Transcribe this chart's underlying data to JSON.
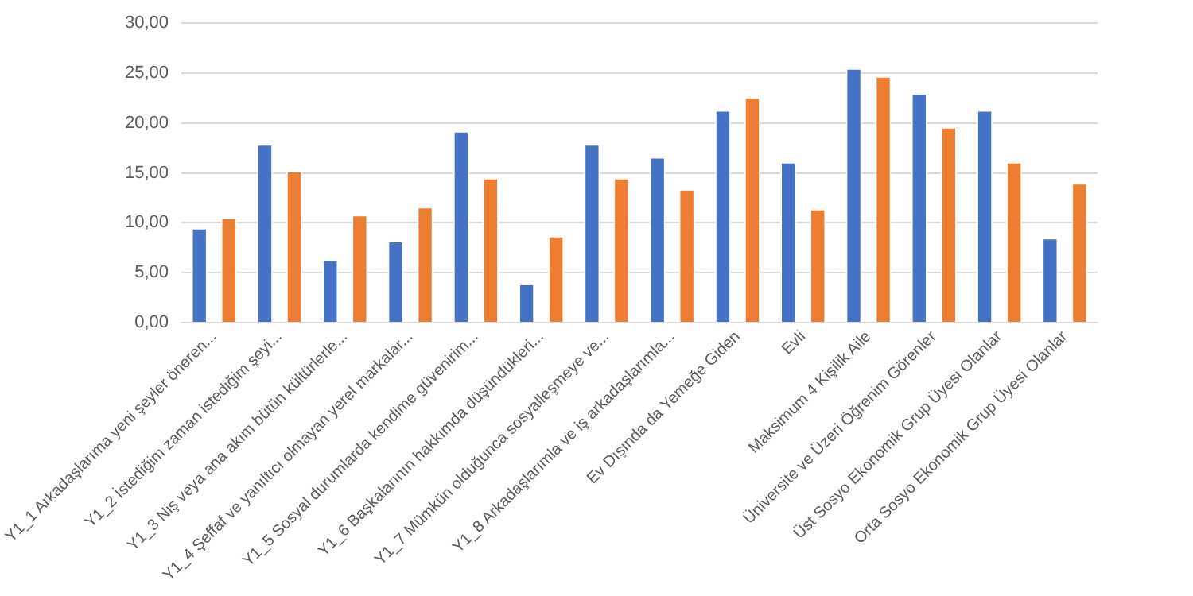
{
  "chart_data": {
    "type": "bar",
    "categories": [
      "Y1_1 Arkadaşlarıma yeni şeyler öneren...",
      "Y1_2 İstediğim zaman istediğim şeyi...",
      "Y1_3 Niş veya ana akım bütün kültürlerle...",
      "Y1_4 Şeffaf ve yanıltıcı olmayan yerel markalar...",
      "Y1_5 Sosyal durumlarda kendime güvenirim...",
      "Y1_6 Başkalarının hakkımda düşündükleri...",
      "Y1_7 Mümkün olduğunca sosyalleşmeye ve...",
      "Y1_8 Arkadaşlarımla ve iş arkadaşlarımla...",
      "Ev Dışında da Yemeğe Giden",
      "Evli",
      "Maksimum 4 Kişilik Aile",
      "Üniversite ve Üzeri Öğrenim Görenler",
      "Üst Sosyo Ekonomik Grup Üyesi Olanlar",
      "Orta Sosyo Ekonomik Grup Üyesi Olanlar"
    ],
    "series": [
      {
        "color": "#4472c4",
        "values": [
          9.5,
          17.9,
          6.3,
          8.2,
          19.2,
          3.9,
          17.9,
          16.6,
          21.3,
          16.1,
          25.5,
          23.0,
          21.3,
          8.5
        ]
      },
      {
        "color": "#ed7d31",
        "values": [
          10.5,
          15.2,
          10.8,
          11.6,
          14.5,
          8.7,
          14.5,
          13.4,
          22.6,
          11.4,
          24.7,
          19.6,
          16.1,
          14.0
        ]
      }
    ],
    "ylim": [
      0,
      30
    ],
    "yticks": [
      {
        "value": 0,
        "label": "0,00"
      },
      {
        "value": 5,
        "label": "5,00"
      },
      {
        "value": 10,
        "label": "10,00"
      },
      {
        "value": 15,
        "label": "15,00"
      },
      {
        "value": 20,
        "label": "20,00"
      },
      {
        "value": 25,
        "label": "25,00"
      },
      {
        "value": 30,
        "label": "30,00"
      }
    ],
    "grid": "y"
  }
}
